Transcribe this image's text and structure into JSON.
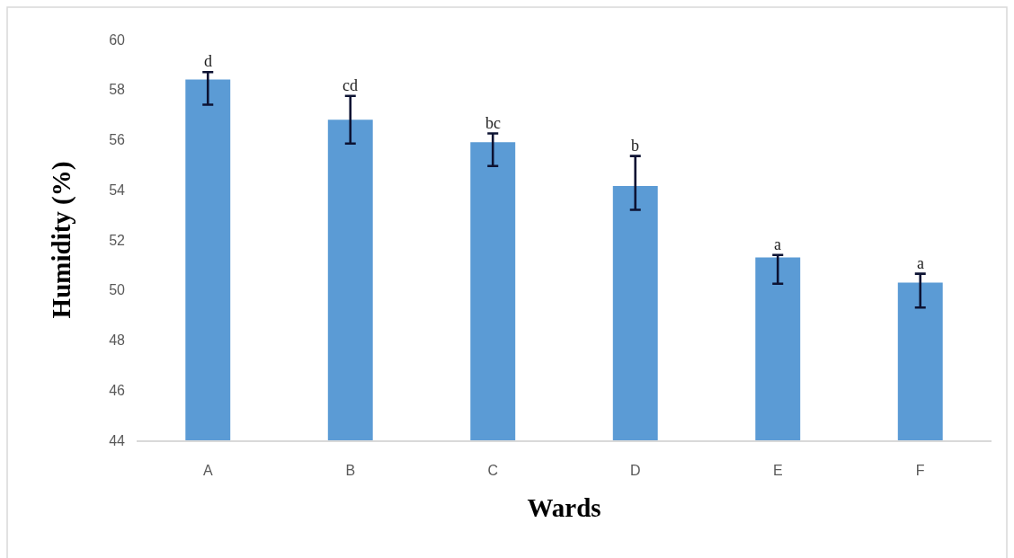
{
  "chart_data": {
    "type": "bar",
    "xlabel": "Wards",
    "ylabel": "Humidity (%)",
    "categories": [
      "A",
      "B",
      "C",
      "D",
      "E",
      "F"
    ],
    "values": [
      58.4,
      56.8,
      55.9,
      54.15,
      51.3,
      50.3
    ],
    "color": "#5b9bd5",
    "errors": [
      [
        57.4,
        58.7
      ],
      [
        55.85,
        57.75
      ],
      [
        54.95,
        56.25
      ],
      [
        53.2,
        55.35
      ],
      [
        50.25,
        51.4
      ],
      [
        49.3,
        50.65
      ]
    ],
    "ylim": [
      44,
      60
    ],
    "yticks": [
      44,
      46,
      48,
      50,
      52,
      54,
      56,
      58,
      60
    ],
    "grid": false,
    "annotations": [
      {
        "text": "d",
        "x": "A",
        "y": 58.7
      },
      {
        "text": "cd",
        "x": "B",
        "y": 57.75
      },
      {
        "text": "bc",
        "x": "C",
        "y": 56.25
      },
      {
        "text": "b",
        "x": "D",
        "y": 55.35
      },
      {
        "text": "a",
        "x": "E",
        "y": 51.4
      },
      {
        "text": "a",
        "x": "F",
        "y": 50.65
      }
    ]
  }
}
